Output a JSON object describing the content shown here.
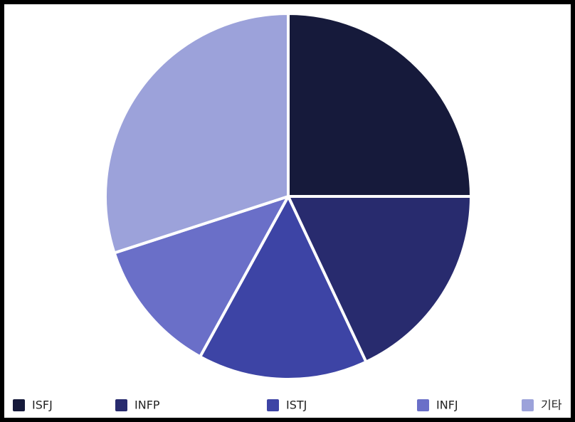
{
  "chart_data": {
    "type": "pie",
    "categories": [
      "ISFJ",
      "INFP",
      "ISTJ",
      "INFJ",
      "기타"
    ],
    "values": [
      25,
      18,
      15,
      12,
      30
    ],
    "colors": [
      "#161a3b",
      "#282b6e",
      "#3d44a5",
      "#6a6fc8",
      "#9ca2da"
    ],
    "legend": "bottom"
  }
}
